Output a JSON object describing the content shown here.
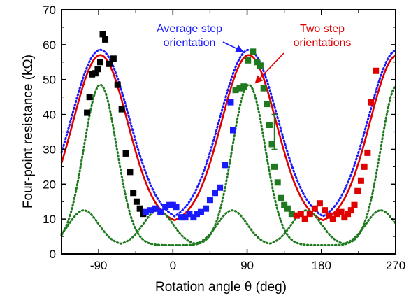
{
  "chart_data": {
    "type": "scatter",
    "title": "",
    "xlabel": "Rotation angle θ (deg)",
    "ylabel": "Four-point resistance (kΩ)",
    "xlim": [
      -135,
      270
    ],
    "ylim": [
      0,
      70
    ],
    "xticks": [
      -90,
      0,
      90,
      180,
      270
    ],
    "yticks": [
      0,
      10,
      20,
      30,
      40,
      50,
      60,
      70
    ],
    "grid": false,
    "annotations": [
      {
        "text_lines": [
          "Average step",
          "orientation"
        ],
        "color": "#1a1aff",
        "arrow_to": [
          85,
          58
        ]
      },
      {
        "text_lines": [
          "Two step",
          "orientations"
        ],
        "color": "#e00000",
        "arrow_to": [
          100,
          49
        ]
      }
    ],
    "scatter_series": [
      {
        "color": "#000000",
        "points": [
          [
            -104,
            40.5
          ],
          [
            -101,
            45
          ],
          [
            -98,
            51.5
          ],
          [
            -94,
            51.8
          ],
          [
            -91,
            53
          ],
          [
            -88,
            55
          ],
          [
            -85,
            63
          ],
          [
            -82,
            61.5
          ],
          [
            -77,
            54.5
          ],
          [
            -72,
            56
          ],
          [
            -67,
            48.5
          ],
          [
            -62,
            41.5
          ],
          [
            -57,
            28.8
          ],
          [
            -52,
            23.5
          ],
          [
            -48,
            17.5
          ],
          [
            -44,
            15
          ],
          [
            -40,
            13
          ],
          [
            -36,
            11.5
          ]
        ]
      },
      {
        "color": "#1a1aff",
        "points": [
          [
            -33,
            12
          ],
          [
            -27,
            12.5
          ],
          [
            -21,
            13
          ],
          [
            -15,
            12
          ],
          [
            -9,
            13.5
          ],
          [
            -4,
            14
          ],
          [
            0,
            14
          ],
          [
            4,
            13.5
          ],
          [
            10,
            10.5
          ],
          [
            15,
            10.5
          ],
          [
            20,
            11.5
          ],
          [
            25,
            10.5
          ],
          [
            29,
            11.5
          ],
          [
            34,
            12
          ],
          [
            40,
            13
          ],
          [
            45,
            15.5
          ],
          [
            51,
            17.5
          ],
          [
            57,
            19
          ],
          [
            63,
            25.5
          ],
          [
            70,
            43.5
          ],
          [
            73,
            35.5
          ]
        ]
      },
      {
        "color": "#1f7a1f",
        "points": [
          [
            76,
            47
          ],
          [
            81,
            47.5
          ],
          [
            86,
            48
          ],
          [
            91,
            55.5
          ],
          [
            97,
            58
          ],
          [
            102,
            55
          ],
          [
            106,
            54
          ],
          [
            110,
            47.5
          ],
          [
            114,
            43
          ],
          [
            117,
            37
          ],
          [
            120,
            31.5
          ],
          [
            123,
            25
          ],
          [
            127,
            20.5
          ],
          [
            131,
            16
          ],
          [
            135,
            14
          ],
          [
            139,
            13
          ],
          [
            144,
            11.5
          ]
        ]
      },
      {
        "color": "#e00000",
        "points": [
          [
            150,
            11
          ],
          [
            155,
            11.5
          ],
          [
            160,
            10
          ],
          [
            166,
            11.5
          ],
          [
            172,
            13
          ],
          [
            178,
            14.5
          ],
          [
            184,
            12.5
          ],
          [
            189,
            11
          ],
          [
            194,
            10
          ],
          [
            199,
            11.5
          ],
          [
            204,
            12
          ],
          [
            208,
            10.5
          ],
          [
            212,
            11.5
          ],
          [
            216,
            12.5
          ],
          [
            220,
            14
          ],
          [
            224,
            18
          ],
          [
            228,
            21
          ],
          [
            232,
            25
          ],
          [
            236,
            29
          ],
          [
            240,
            43.5
          ],
          [
            246,
            52.5
          ]
        ]
      }
    ],
    "curves": [
      {
        "role": "two step orientations fit",
        "color": "#e00000",
        "style": "solid",
        "base": 8.5,
        "peak": 57,
        "center": -88,
        "period": 180,
        "width": 33
      },
      {
        "role": "average step orientation fit",
        "color": "#1a1aff",
        "style": "dotted",
        "base": 9,
        "peak": 58.5,
        "center": -88,
        "period": 180,
        "width": 35
      },
      {
        "role": "component",
        "color": "#1f7a1f",
        "style": "dotted",
        "base": 2.5,
        "peak": 48.5,
        "center": -88,
        "period": 180,
        "width": 20
      },
      {
        "role": "component",
        "color": "#1f7a1f",
        "style": "dotted",
        "base": 2.5,
        "peak": 12.5,
        "center": -108,
        "period": 90,
        "width": 18
      }
    ],
    "error_bars": [
      {
        "x": 123,
        "y_low": 30,
        "y_high": 40,
        "color": "#1f7a1f"
      }
    ]
  }
}
